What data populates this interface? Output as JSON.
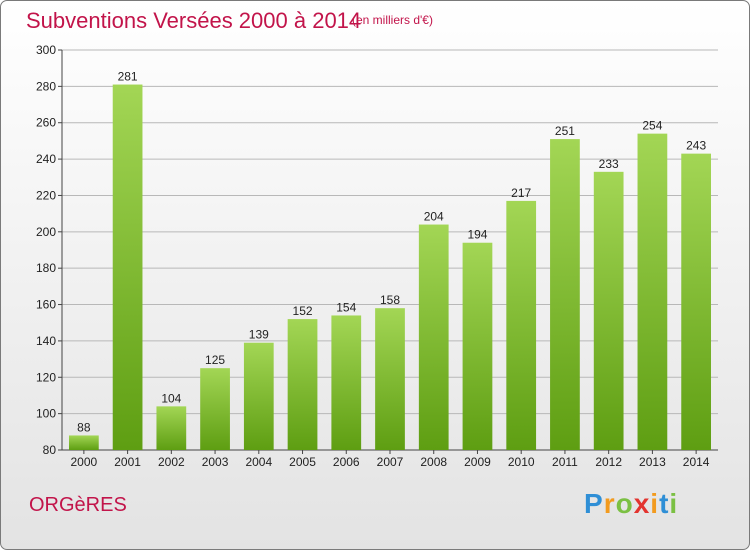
{
  "title": "Subventions Versées 2000 à 2014",
  "subtitle": "(en milliers d'€)",
  "commune": "ORGèRES",
  "logo": {
    "letters": [
      "P",
      "r",
      "o",
      "x",
      "i",
      "t",
      "i"
    ],
    "colors": [
      "#2f8fd6",
      "#f29b1f",
      "#7bc043",
      "#e3342f",
      "#f29b1f",
      "#2f8fd6",
      "#7bc043"
    ]
  },
  "colors": {
    "bar_light": "#a3d655",
    "bar_dark": "#5e9e12",
    "title": "#c2144a",
    "grid": "#b8b8b8"
  },
  "chart_data": {
    "type": "bar",
    "categories": [
      "2000",
      "2001",
      "2002",
      "2003",
      "2004",
      "2005",
      "2006",
      "2007",
      "2008",
      "2009",
      "2010",
      "2011",
      "2012",
      "2013",
      "2014"
    ],
    "values": [
      88,
      281,
      104,
      125,
      139,
      152,
      154,
      158,
      204,
      194,
      217,
      251,
      233,
      254,
      243
    ],
    "title": "Subventions Versées 2000 à 2014",
    "xlabel": "",
    "ylabel": "",
    "ylim": [
      80,
      300
    ],
    "yticks": [
      80,
      100,
      120,
      140,
      160,
      180,
      200,
      220,
      240,
      260,
      280,
      300
    ],
    "grid": true,
    "legend": "none"
  }
}
